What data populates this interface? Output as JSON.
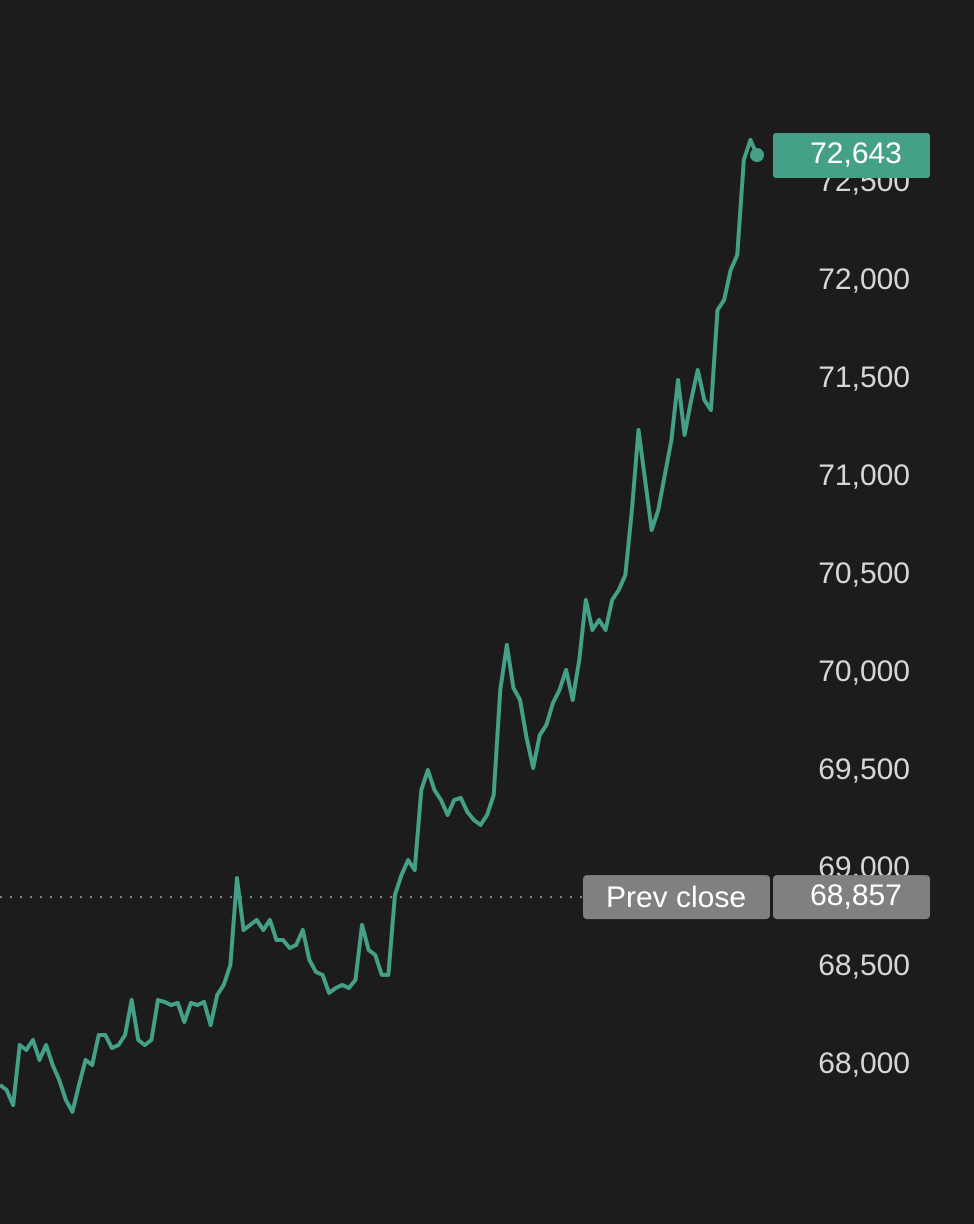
{
  "chart_data": {
    "type": "line",
    "series": [
      {
        "color": "#45a088",
        "values": [
          67898,
          67873,
          67796,
          68102,
          68077,
          68128,
          68026,
          68102,
          68000,
          67924,
          67822,
          67761,
          67898,
          68026,
          68000,
          68153,
          68153,
          68087,
          68102,
          68153,
          68332,
          68128,
          68102,
          68128,
          68332,
          68322,
          68306,
          68317,
          68220,
          68317,
          68306,
          68322,
          68204,
          68358,
          68409,
          68511,
          68954,
          68689,
          68715,
          68740,
          68689,
          68740,
          68638,
          68638,
          68597,
          68613,
          68689,
          68536,
          68475,
          68460,
          68368,
          68393,
          68409,
          68393,
          68434,
          68715,
          68587,
          68562,
          68460,
          68460,
          68868,
          68970,
          69046,
          68995,
          69403,
          69505,
          69403,
          69352,
          69276,
          69352,
          69363,
          69291,
          69250,
          69225,
          69276,
          69378,
          69914,
          70143,
          69924,
          69863,
          69669,
          69516,
          69684,
          69735,
          69847,
          69914,
          70016,
          69863,
          70067,
          70373,
          70220,
          70271,
          70220,
          70373,
          70424,
          70500,
          70832,
          71240,
          70985,
          70730,
          70832,
          71011,
          71189,
          71495,
          71215,
          71393,
          71546,
          71393,
          71342,
          71852,
          71903,
          72056,
          72133,
          72618,
          72720,
          72643
        ]
      }
    ],
    "ylim": [
      67189,
      73434
    ],
    "yticks": [
      {
        "value": 68000,
        "label": "68,000"
      },
      {
        "value": 68500,
        "label": "68,500"
      },
      {
        "value": 69000,
        "label": "69,000"
      },
      {
        "value": 69500,
        "label": "69,500"
      },
      {
        "value": 70000,
        "label": "70,000"
      },
      {
        "value": 70500,
        "label": "70,500"
      },
      {
        "value": 71000,
        "label": "71,000"
      },
      {
        "value": 71500,
        "label": "71,500"
      },
      {
        "value": 72000,
        "label": "72,000"
      },
      {
        "value": 72500,
        "label": "72,500"
      }
    ],
    "current": {
      "value": 72643,
      "label": "72,643"
    },
    "reference_line": {
      "label": "Prev close",
      "value": 68857,
      "value_label": "68,857",
      "color": "#808080"
    }
  }
}
